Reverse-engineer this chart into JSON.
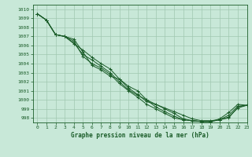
{
  "title": "Graphe pression niveau de la mer (hPa)",
  "background_color": "#c8e8d8",
  "grid_color": "#a0c8b0",
  "line_color": "#1a5c28",
  "marker_color": "#1a5c28",
  "xlim": [
    -0.5,
    23
  ],
  "ylim": [
    997.5,
    1010.5
  ],
  "yticks": [
    998,
    999,
    1000,
    1001,
    1002,
    1003,
    1004,
    1005,
    1006,
    1007,
    1008,
    1009,
    1010
  ],
  "xticks": [
    0,
    1,
    2,
    3,
    4,
    5,
    6,
    7,
    8,
    9,
    10,
    11,
    12,
    13,
    14,
    15,
    16,
    17,
    18,
    19,
    20,
    21,
    22,
    23
  ],
  "series": [
    [
      1009.5,
      1008.8,
      1007.2,
      1007.0,
      1006.2,
      1005.5,
      1004.7,
      1004.0,
      1003.4,
      1002.3,
      1001.5,
      1001.0,
      1000.0,
      999.5,
      999.1,
      998.7,
      998.3,
      997.9,
      997.7,
      997.7,
      997.8,
      998.3,
      999.3,
      999.4
    ],
    [
      1009.5,
      1008.8,
      1007.2,
      1007.0,
      1006.3,
      1005.0,
      1004.4,
      1003.7,
      1003.0,
      1002.0,
      1001.1,
      1000.5,
      1000.0,
      999.2,
      998.7,
      998.2,
      997.8,
      997.7,
      997.6,
      997.6,
      997.8,
      998.1,
      999.1,
      999.4
    ],
    [
      1009.5,
      1008.8,
      1007.2,
      1007.0,
      1006.5,
      1004.8,
      1004.0,
      1003.5,
      1002.8,
      1001.8,
      1001.0,
      1000.3,
      999.5,
      999.0,
      998.5,
      998.0,
      997.8,
      997.7,
      997.6,
      997.6,
      997.8,
      998.0,
      999.2,
      999.4
    ],
    [
      1009.5,
      1008.8,
      1007.2,
      1007.0,
      1006.7,
      1005.3,
      1003.8,
      1003.3,
      1002.6,
      1002.3,
      1001.3,
      1000.6,
      999.8,
      999.5,
      999.0,
      998.5,
      997.9,
      997.7,
      997.6,
      997.6,
      997.9,
      998.6,
      999.5,
      999.4
    ]
  ]
}
